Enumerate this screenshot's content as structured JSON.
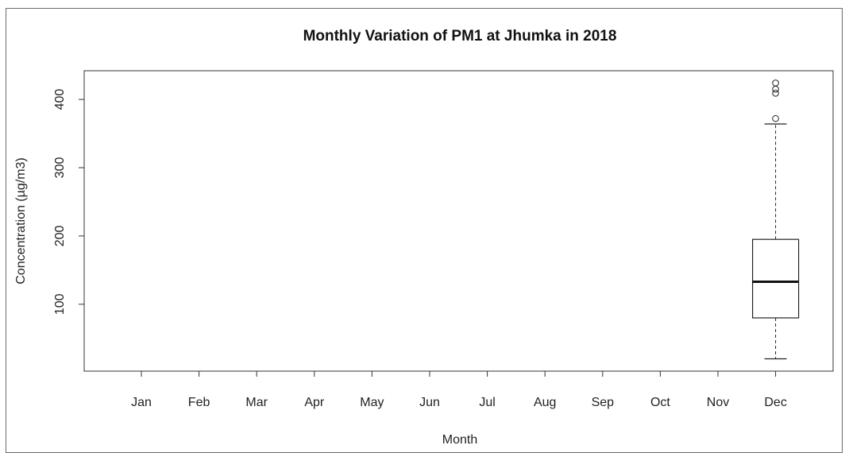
{
  "chart_data": {
    "type": "boxplot",
    "title": "Monthly Variation of PM1 at Jhumka in 2018",
    "xlabel": "Month",
    "ylabel": "Concentration (µg/m3)",
    "categories": [
      "Jan",
      "Feb",
      "Mar",
      "Apr",
      "May",
      "Jun",
      "Jul",
      "Aug",
      "Sep",
      "Oct",
      "Nov",
      "Dec"
    ],
    "y_ticks": [
      100,
      200,
      300,
      400
    ],
    "ylim": [
      2,
      442
    ],
    "grid": false,
    "boxes": [
      {
        "category": "Dec",
        "whisker_low": 20,
        "q1": 80,
        "median": 133,
        "q3": 195,
        "whisker_high": 364,
        "outliers": [
          372,
          409,
          415,
          424
        ]
      }
    ]
  }
}
